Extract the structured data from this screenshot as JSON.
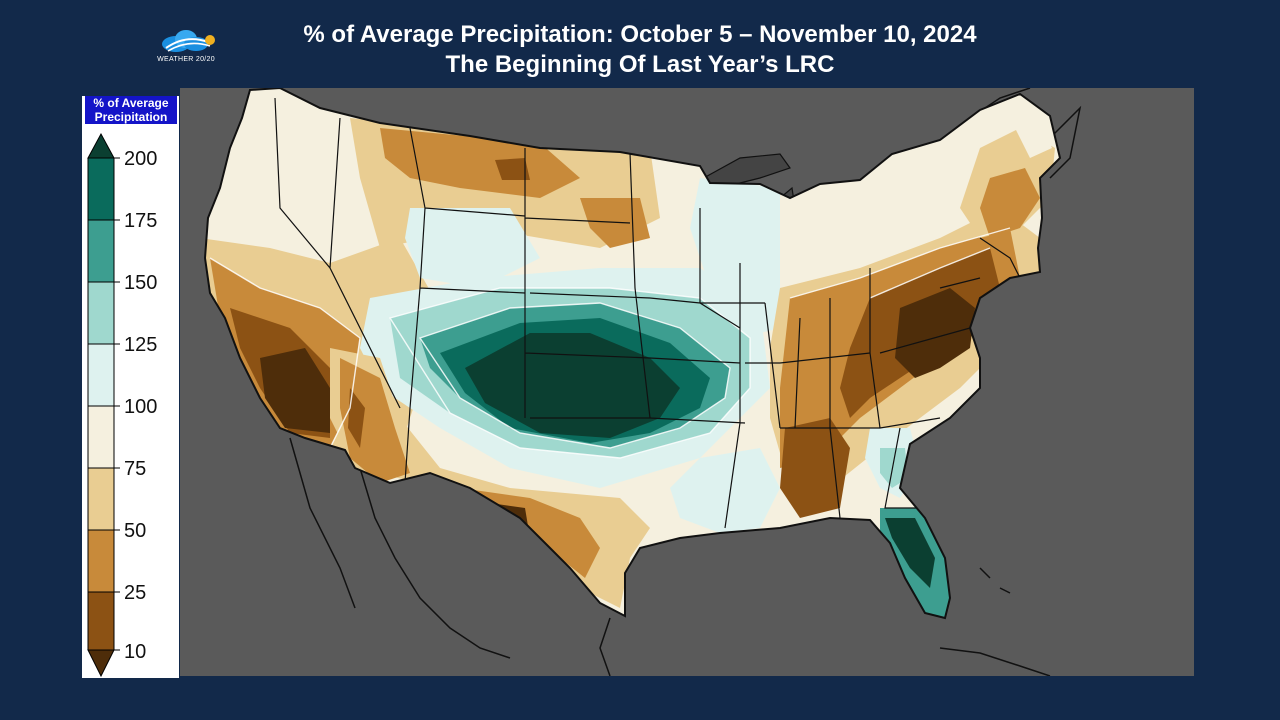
{
  "header": {
    "title": "% of Average Precipitation: October 5 – November 10, 2024",
    "subtitle": "The Beginning Of Last Year’s LRC"
  },
  "logo": {
    "icon": "cloud-icon",
    "text": "WEATHER 20/20"
  },
  "legend": {
    "title_line1": "% of Average",
    "title_line2": "Precipitation",
    "ticks": [
      "200",
      "175",
      "150",
      "125",
      "100",
      "75",
      "50",
      "25",
      "10"
    ],
    "colors": {
      "over_200": "#0b3f31",
      "175_200": "#0a6b5c",
      "150_175": "#3d9e90",
      "125_150": "#9fd8ce",
      "100_125": "#def2ef",
      "75_100": "#f5f0df",
      "50_75": "#e9cd92",
      "25_50": "#c88a3a",
      "10_25": "#8c5214",
      "under_10": "#4e2d0a"
    }
  },
  "map": {
    "background_color": "#5a5a5a",
    "land_outline_color": "#111111"
  }
}
